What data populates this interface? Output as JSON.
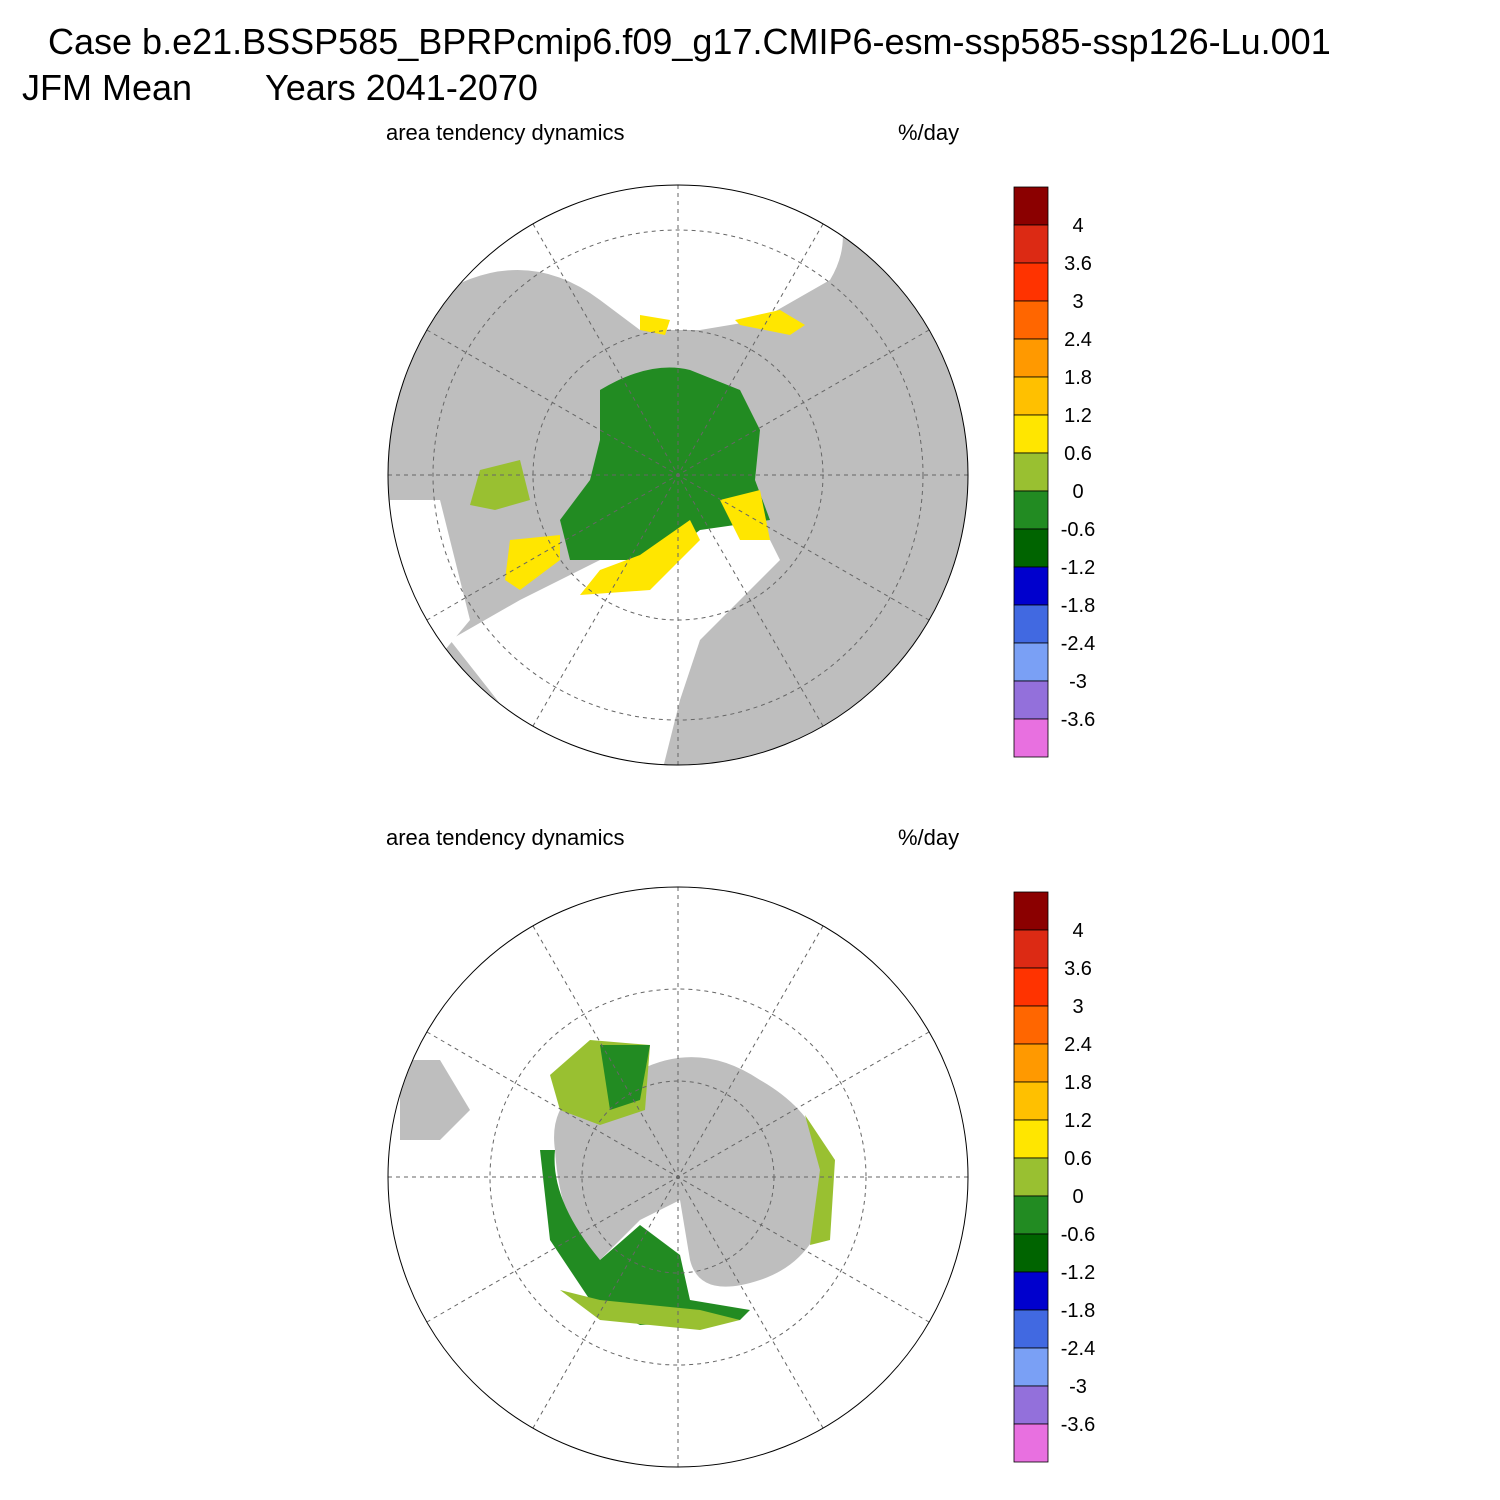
{
  "header": {
    "title": "Case b.e21.BSSP585_BPRPcmip6.f09_g17.CMIP6-esm-ssp585-ssp126-Lu.001",
    "season": "JFM Mean",
    "years": "Years 2041-2070"
  },
  "colorbar_colors": [
    "#8b0000",
    "#dc2a14",
    "#ff3300",
    "#ff6600",
    "#ff9900",
    "#ffc000",
    "#ffe600",
    "#99c031",
    "#228b22",
    "#006400",
    "#0000cd",
    "#4169e1",
    "#7aa0f5",
    "#9370db",
    "#e870e0"
  ],
  "panels": [
    {
      "left_label": "area tendency dynamics",
      "right_label": "%/day",
      "colorbar_levels": [
        4,
        3.6,
        3,
        2.4,
        1.8,
        1.2,
        0.6,
        0,
        -0.6,
        -1.2,
        -1.8,
        -2.4,
        -3,
        -3.6
      ]
    },
    {
      "left_label": "area tendency dynamics",
      "right_label": "%/day",
      "colorbar_levels": [
        4,
        3.6,
        3,
        2.4,
        1.8,
        1.2,
        0.6,
        0,
        -0.6,
        -1.2,
        -1.8,
        -2.4,
        -3,
        -3.6
      ]
    }
  ]
}
